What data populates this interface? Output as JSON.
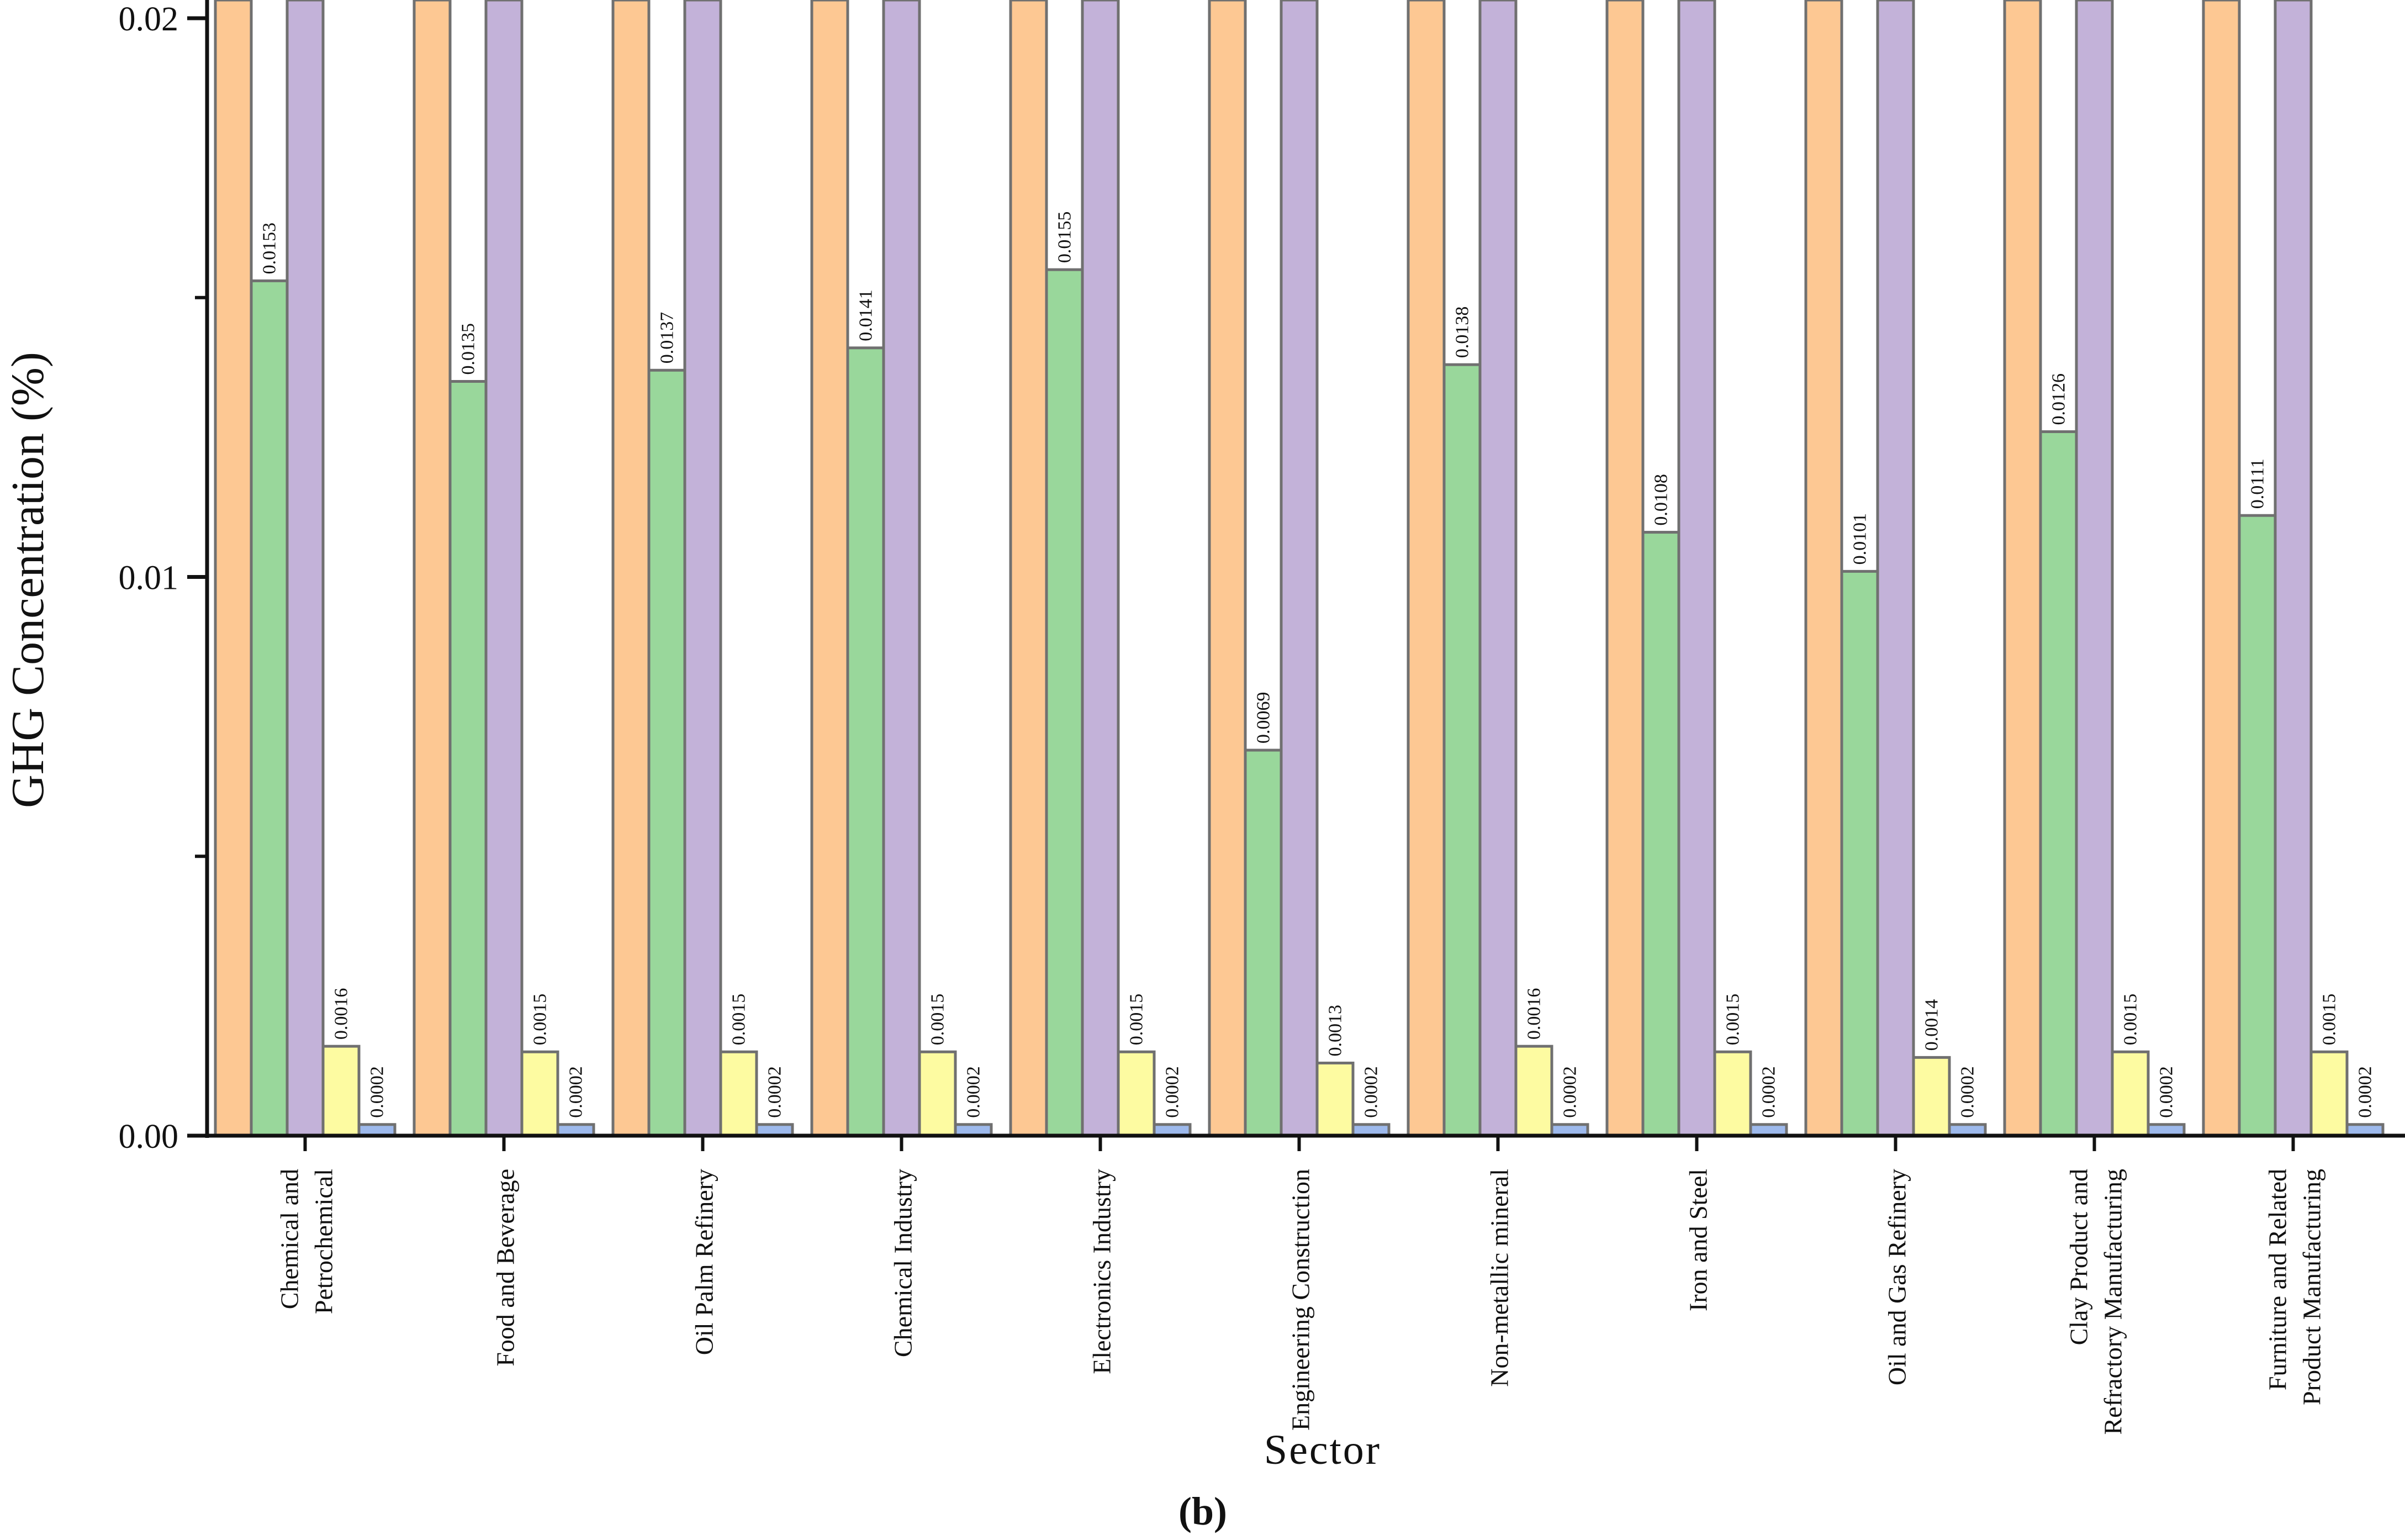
{
  "chart_data": {
    "type": "bar",
    "title": "",
    "xlabel": "Sector",
    "ylabel": "GHG Concentration (%)",
    "panel_label": "(b)",
    "ylim": [
      0,
      0.02
    ],
    "y_ticks": [
      {
        "value": 0,
        "label": "0.00"
      },
      {
        "value": 0.01,
        "label": "0.01"
      },
      {
        "value": 0.02,
        "label": "0.02"
      }
    ],
    "y_minor_ticks": [
      0.005,
      0.015
    ],
    "categories": [
      [
        "Chemical and",
        "Petrochemical"
      ],
      [
        "Food and Beverage"
      ],
      [
        "Oil Palm Refinery"
      ],
      [
        "Chemical Industry"
      ],
      [
        "Electronics Industry"
      ],
      [
        "Engineering Construction"
      ],
      [
        "Non-metallic mineral"
      ],
      [
        "Iron and Steel"
      ],
      [
        "Oil and Gas Refinery"
      ],
      [
        "Clay Product and",
        "Refractory Manufacturing"
      ],
      [
        "Furniture and Related",
        "Product Manufacturing"
      ]
    ],
    "series": [
      {
        "name": "series-1",
        "color": "#FDC893",
        "clipped_above_axis": true,
        "values": [
          null,
          null,
          null,
          null,
          null,
          null,
          null,
          null,
          null,
          null,
          null
        ],
        "labels": null
      },
      {
        "name": "series-2",
        "color": "#99D79B",
        "clipped_above_axis": false,
        "values": [
          0.0153,
          0.0135,
          0.0137,
          0.0141,
          0.0155,
          0.0069,
          0.0138,
          0.0108,
          0.0101,
          0.0126,
          0.0111
        ],
        "labels": [
          "0.0153",
          "0.0135",
          "0.0137",
          "0.0141",
          "0.0155",
          "0.0069",
          "0.0138",
          "0.0108",
          "0.0101",
          "0.0126",
          "0.0111"
        ]
      },
      {
        "name": "series-3",
        "color": "#C3B2D9",
        "clipped_above_axis": true,
        "values": [
          null,
          null,
          null,
          null,
          null,
          null,
          null,
          null,
          null,
          null,
          null
        ],
        "labels": null
      },
      {
        "name": "series-4",
        "color": "#FDFBA1",
        "clipped_above_axis": false,
        "values": [
          0.0016,
          0.0015,
          0.0015,
          0.0015,
          0.0015,
          0.0013,
          0.0016,
          0.0015,
          0.0014,
          0.0015,
          0.0015
        ],
        "labels": [
          "0.0016",
          "0.0015",
          "0.0015",
          "0.0015",
          "0.0015",
          "0.0013",
          "0.0016",
          "0.0015",
          "0.0014",
          "0.0015",
          "0.0015"
        ]
      },
      {
        "name": "series-5",
        "color": "#9DB9EC",
        "clipped_above_axis": false,
        "values": [
          0.0002,
          0.0002,
          0.0002,
          0.0002,
          0.0002,
          0.0002,
          0.0002,
          0.0002,
          0.0002,
          0.0002,
          0.0002
        ],
        "labels": [
          "0.0002",
          "0.0002",
          "0.0002",
          "0.0002",
          "0.0002",
          "0.0002",
          "0.0002",
          "0.0002",
          "0.0002",
          "0.0002",
          "0.0002"
        ]
      }
    ]
  }
}
